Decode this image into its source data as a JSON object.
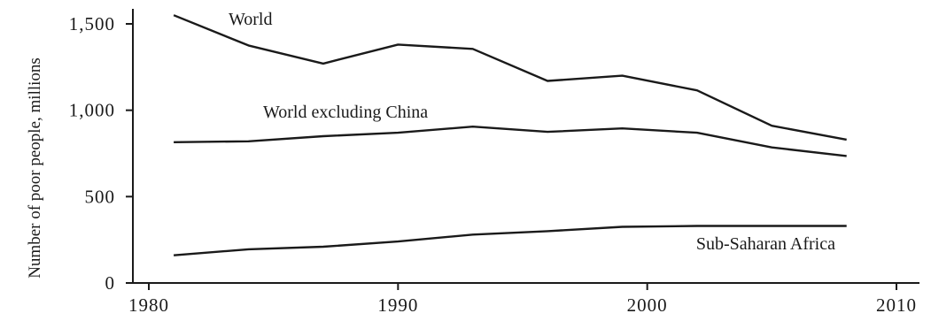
{
  "chart_data": {
    "type": "line",
    "title": "",
    "xlabel": "",
    "ylabel": "Number of poor people, millions",
    "xlim": [
      1978,
      2011
    ],
    "ylim": [
      0,
      1600
    ],
    "x_ticks": [
      1980,
      1990,
      2000,
      2010
    ],
    "x_tick_labels": [
      "1980",
      "1990",
      "2000",
      "2010"
    ],
    "y_ticks": [
      0,
      500,
      1000,
      1500
    ],
    "y_tick_labels": [
      "0",
      "500",
      "1,000",
      "1,500"
    ],
    "grid": false,
    "legend": "none",
    "x": [
      1981,
      1984,
      1987,
      1990,
      1993,
      1996,
      1999,
      2002,
      2005,
      2008
    ],
    "series": [
      {
        "name": "World",
        "color": "#1a1a1a",
        "values": [
          1550,
          1375,
          1270,
          1380,
          1355,
          1170,
          1200,
          1115,
          910,
          830
        ]
      },
      {
        "name": "World excluding China",
        "color": "#1a1a1a",
        "values": [
          815,
          820,
          850,
          870,
          905,
          875,
          895,
          870,
          785,
          735
        ]
      },
      {
        "name": "Sub-Saharan Africa",
        "color": "#1a1a1a",
        "values": [
          160,
          195,
          210,
          240,
          280,
          300,
          325,
          330,
          330,
          330
        ]
      }
    ]
  }
}
